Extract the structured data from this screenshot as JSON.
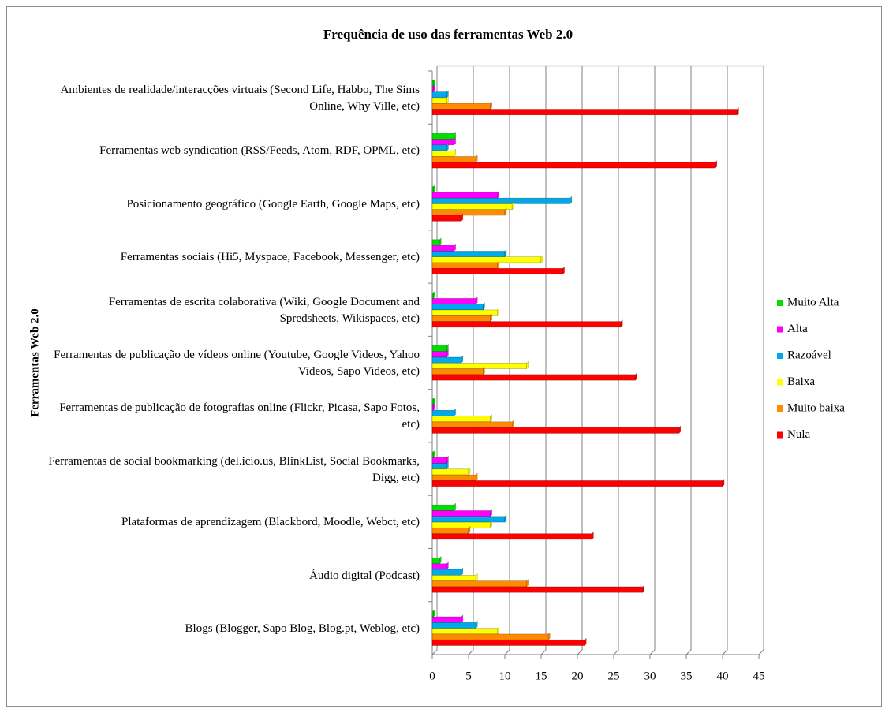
{
  "chart_data": {
    "type": "hbar",
    "title": "Frequência de uso das ferramentas Web 2.0",
    "y_axis_label": "Ferramentas Web 2.0",
    "categories": [
      "Ambientes de realidade/interacções virtuais (Second Life, Habbo, The Sims Online, Why Ville, etc)",
      "Ferramentas web syndication (RSS/Feeds, Atom, RDF, OPML, etc)",
      "Posicionamento geográfico (Google Earth, Google Maps, etc)",
      "Ferramentas sociais (Hi5, Myspace, Facebook, Messenger, etc)",
      "Ferramentas de escrita colaborativa (Wiki, Google Document and Spredsheets, Wikispaces, etc)",
      "Ferramentas de publicação de vídeos online (Youtube, Google Videos, Yahoo Videos, Sapo Videos, etc)",
      "Ferramentas de publicação de fotografias online (Flickr, Picasa, Sapo Fotos, etc)",
      "Ferramentas de social bookmarking (del.icio.us, BlinkList, Social Bookmarks, Digg, etc)",
      "Plataformas de aprendizagem (Blackbord, Moodle, Webct, etc)",
      "Áudio digital (Podcast)",
      "Blogs (Blogger, Sapo Blog, Blog.pt, Weblog, etc)"
    ],
    "series": [
      {
        "name": "Muito Alta",
        "color": "#00e000",
        "values": [
          0,
          3,
          0,
          1,
          0,
          2,
          0,
          0,
          3,
          1,
          0
        ]
      },
      {
        "name": "Alta",
        "color": "#ff00ff",
        "values": [
          0,
          3,
          9,
          3,
          6,
          2,
          0,
          2,
          8,
          2,
          4
        ]
      },
      {
        "name": "Razoável",
        "color": "#00a8ec",
        "values": [
          2,
          2,
          19,
          10,
          7,
          4,
          3,
          2,
          10,
          4,
          6
        ]
      },
      {
        "name": "Baixa",
        "color": "#ffff00",
        "values": [
          2,
          3,
          11,
          15,
          9,
          13,
          8,
          5,
          8,
          6,
          9
        ]
      },
      {
        "name": "Muito baixa",
        "color": "#ff8c00",
        "values": [
          8,
          6,
          10,
          9,
          8,
          7,
          11,
          6,
          5,
          13,
          16
        ]
      },
      {
        "name": "Nula",
        "color": "#ff0000",
        "values": [
          42,
          39,
          4,
          18,
          26,
          28,
          34,
          40,
          22,
          29,
          21
        ]
      }
    ],
    "xlim": [
      0,
      45
    ],
    "xticks": [
      0,
      5,
      10,
      15,
      20,
      25,
      30,
      35,
      40,
      45
    ],
    "grid": true,
    "legend": "right"
  }
}
